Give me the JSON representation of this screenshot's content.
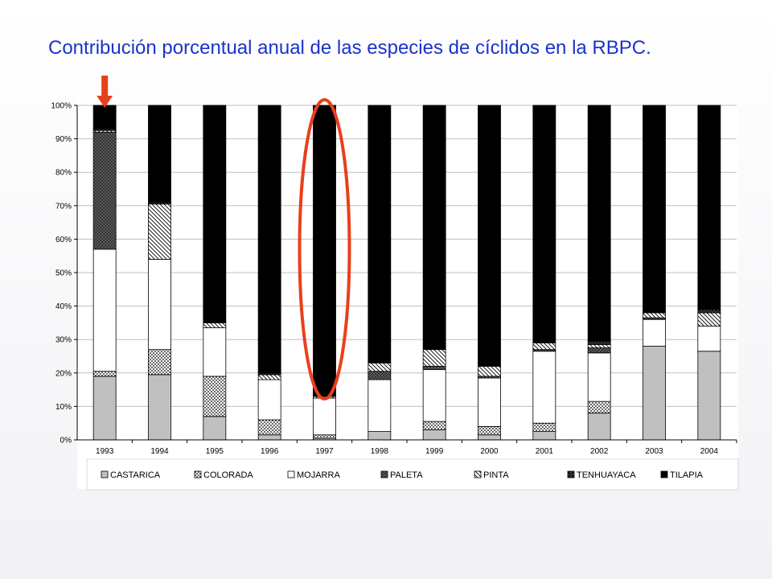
{
  "title": "Contribución porcentual anual de las especies de cíclidos en la RBPC.",
  "colors": {
    "title": "#1a33cc",
    "annotation": "#e8401c",
    "background_panel": "#ffffff"
  },
  "annotations": {
    "arrow": {
      "category": "1993"
    },
    "ellipse": {
      "category": "1997"
    }
  },
  "chart_data": {
    "type": "bar",
    "stacked": true,
    "categories": [
      "1993",
      "1994",
      "1995",
      "1996",
      "1997",
      "1998",
      "1999",
      "2000",
      "2001",
      "2002",
      "2003",
      "2004"
    ],
    "y_ticks": [
      "0%",
      "10%",
      "20%",
      "30%",
      "40%",
      "50%",
      "60%",
      "70%",
      "80%",
      "90%",
      "100%"
    ],
    "ylim": [
      0,
      100
    ],
    "grid": true,
    "legend_position": "bottom",
    "series": [
      {
        "name": "CASTARICA",
        "pattern": "solid-gray",
        "values": [
          19,
          19.5,
          7,
          1.5,
          0.5,
          2.5,
          3,
          1.5,
          2.5,
          8,
          28,
          26.5
        ]
      },
      {
        "name": "COLORADA",
        "pattern": "dots",
        "values": [
          1.5,
          7.5,
          12,
          4.5,
          1,
          0,
          2.5,
          2.5,
          2.5,
          3.5,
          0,
          0
        ]
      },
      {
        "name": "MOJARRA",
        "pattern": "white",
        "values": [
          36.5,
          27,
          14.5,
          12,
          11,
          15.5,
          15.5,
          14.5,
          21.5,
          14.5,
          8,
          7.5
        ]
      },
      {
        "name": "PALETA",
        "pattern": "dark-dots",
        "values": [
          35,
          0,
          0,
          0,
          0,
          2.5,
          1,
          0.5,
          0.5,
          1.5,
          0.5,
          0
        ]
      },
      {
        "name": "PINTA",
        "pattern": "diagonal",
        "values": [
          0.5,
          16.5,
          1.5,
          1.5,
          0.5,
          2.5,
          5,
          3,
          2,
          1,
          1.5,
          4
        ]
      },
      {
        "name": "TENHUAYACA",
        "pattern": "crosshatch",
        "values": [
          0.5,
          0.5,
          0,
          0.5,
          0,
          0,
          0,
          0,
          0,
          1,
          0,
          1
        ]
      },
      {
        "name": "TILAPIA",
        "pattern": "black",
        "values": [
          7,
          29,
          65,
          80,
          87,
          77,
          73,
          78,
          71,
          70.5,
          62,
          61
        ]
      }
    ]
  }
}
